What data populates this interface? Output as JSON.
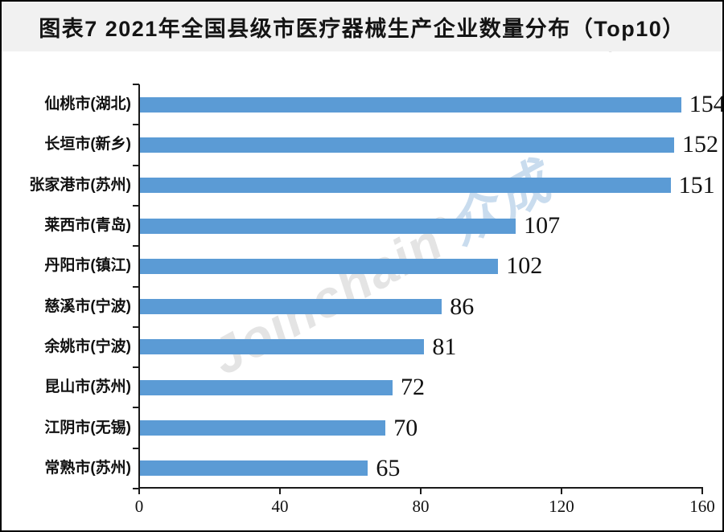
{
  "title": "图表7 2021年全国县级市医疗器械生产企业数量分布（Top10）",
  "watermark": {
    "latin": "Joinchain",
    "reg": "®",
    "cjk": "众成"
  },
  "colors": {
    "bar": "#5B9BD5",
    "title_bar_bg": "#f1f1f1",
    "axis": "#1a1a1a",
    "watermark_latin": "#e4e4e4",
    "watermark_cjk": "#c9dcee"
  },
  "chart_data": {
    "type": "bar",
    "orientation": "horizontal",
    "title": "图表7 2021年全国县级市医疗器械生产企业数量分布（Top10）",
    "categories": [
      "仙桃市(湖北)",
      "长垣市(新乡)",
      "张家港市(苏州)",
      "莱西市(青岛)",
      "丹阳市(镇江)",
      "慈溪市(宁波)",
      "余姚市(宁波)",
      "昆山市(苏州)",
      "江阴市(无锡)",
      "常熟市(苏州)"
    ],
    "values": [
      154,
      152,
      151,
      107,
      102,
      86,
      81,
      72,
      70,
      65
    ],
    "xlabel": "",
    "ylabel": "",
    "xlim": [
      0,
      160
    ],
    "xticks": [
      0,
      40,
      80,
      120,
      160
    ],
    "grid": false,
    "legend": false,
    "value_labels_shown": true,
    "bar_color": "#5B9BD5"
  }
}
